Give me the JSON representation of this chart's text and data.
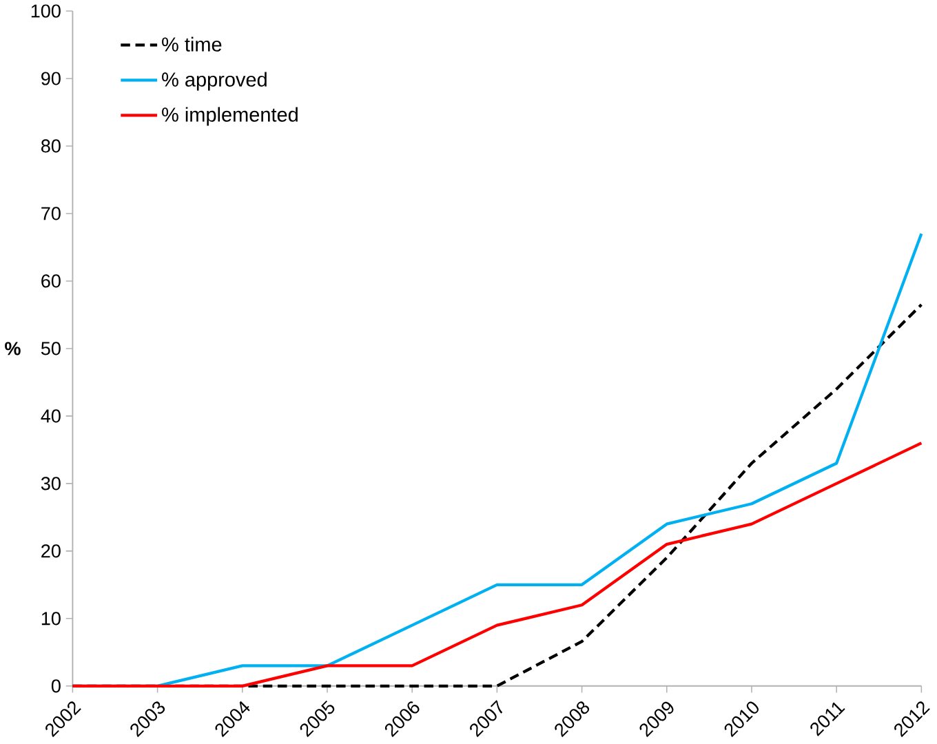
{
  "chart_data": {
    "type": "line",
    "ylabel": "%",
    "categories": [
      "2002",
      "2003",
      "2004",
      "2005",
      "2006",
      "2007",
      "2008",
      "2009",
      "2010",
      "2011",
      "2012"
    ],
    "series": [
      {
        "name": "% time",
        "color": "#000000",
        "line_style": "dashed",
        "values": [
          0,
          0,
          0,
          0,
          0,
          0,
          6.6,
          19,
          33,
          44,
          56.5
        ]
      },
      {
        "name": "% approved",
        "color": "#00b0f0",
        "line_style": "solid",
        "values": [
          0,
          0,
          3,
          3,
          9,
          15,
          15,
          24,
          27,
          33,
          67
        ]
      },
      {
        "name": "% implemented",
        "color": "#ff0000",
        "line_style": "solid",
        "values": [
          0,
          0,
          0,
          3,
          3,
          9,
          12,
          21,
          24,
          30,
          36
        ]
      }
    ],
    "ylim": [
      0,
      100
    ],
    "yticks": [
      0,
      10,
      20,
      30,
      40,
      50,
      60,
      70,
      80,
      90,
      100
    ],
    "legend": "top left",
    "grid": false,
    "marker": "none"
  }
}
